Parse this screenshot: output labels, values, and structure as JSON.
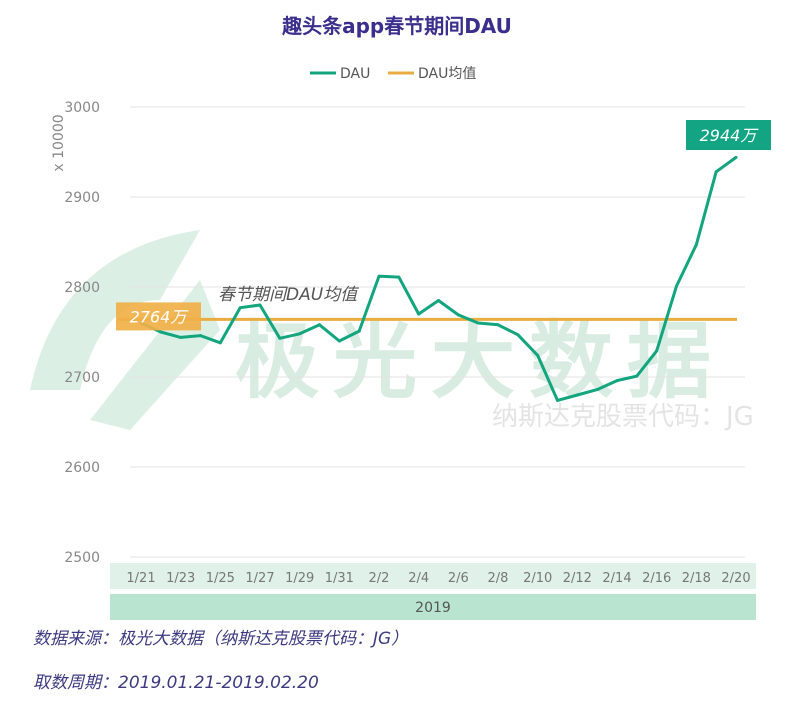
{
  "chart_data": {
    "type": "line",
    "title": "趣头条app春节期间DAU",
    "ylabel": "x 10000",
    "xlabel": "2019",
    "ylim": [
      2500,
      3000
    ],
    "yticks": [
      "2500",
      "2600",
      "2700",
      "2800",
      "2900",
      "3000"
    ],
    "grid": true,
    "legend_position": "top-center",
    "legend": [
      "DAU",
      "DAU均值"
    ],
    "x": [
      "1/21",
      "1/22",
      "1/23",
      "1/24",
      "1/25",
      "1/26",
      "1/27",
      "1/28",
      "1/29",
      "1/30",
      "1/31",
      "2/1",
      "2/2",
      "2/3",
      "2/4",
      "2/5",
      "2/6",
      "2/7",
      "2/8",
      "2/9",
      "2/10",
      "2/11",
      "2/12",
      "2/13",
      "2/14",
      "2/15",
      "2/16",
      "2/17",
      "2/18",
      "2/19",
      "2/20"
    ],
    "xtick_labels": [
      "1/21",
      "1/23",
      "1/25",
      "1/27",
      "1/29",
      "1/31",
      "2/2",
      "2/4",
      "2/6",
      "2/8",
      "2/10",
      "2/12",
      "2/14",
      "2/16",
      "2/18",
      "2/20"
    ],
    "series": [
      {
        "name": "DAU",
        "color": "#12a57e",
        "values": [
          2760,
          2750,
          2744,
          2746,
          2738,
          2777,
          2780,
          2743,
          2748,
          2758,
          2740,
          2751,
          2812,
          2811,
          2770,
          2785,
          2769,
          2760,
          2758,
          2747,
          2724,
          2674,
          2680,
          2686,
          2696,
          2701,
          2729,
          2801,
          2847,
          2928,
          2944
        ]
      },
      {
        "name": "DAU均值",
        "color": "#e9ad3f",
        "value": 2764
      }
    ],
    "annotations": {
      "mean_label": "2764万",
      "mean_caption": "春节期间DAU均值",
      "last_label": "2944万"
    }
  },
  "watermark": {
    "logo": "极光大数据",
    "sub": "纳斯达克股票代码：JG"
  },
  "footer": {
    "source": "数据来源：极光大数据（纳斯达克股票代码：JG）",
    "period": "取数周期：2019.01.21-2019.02.20"
  }
}
